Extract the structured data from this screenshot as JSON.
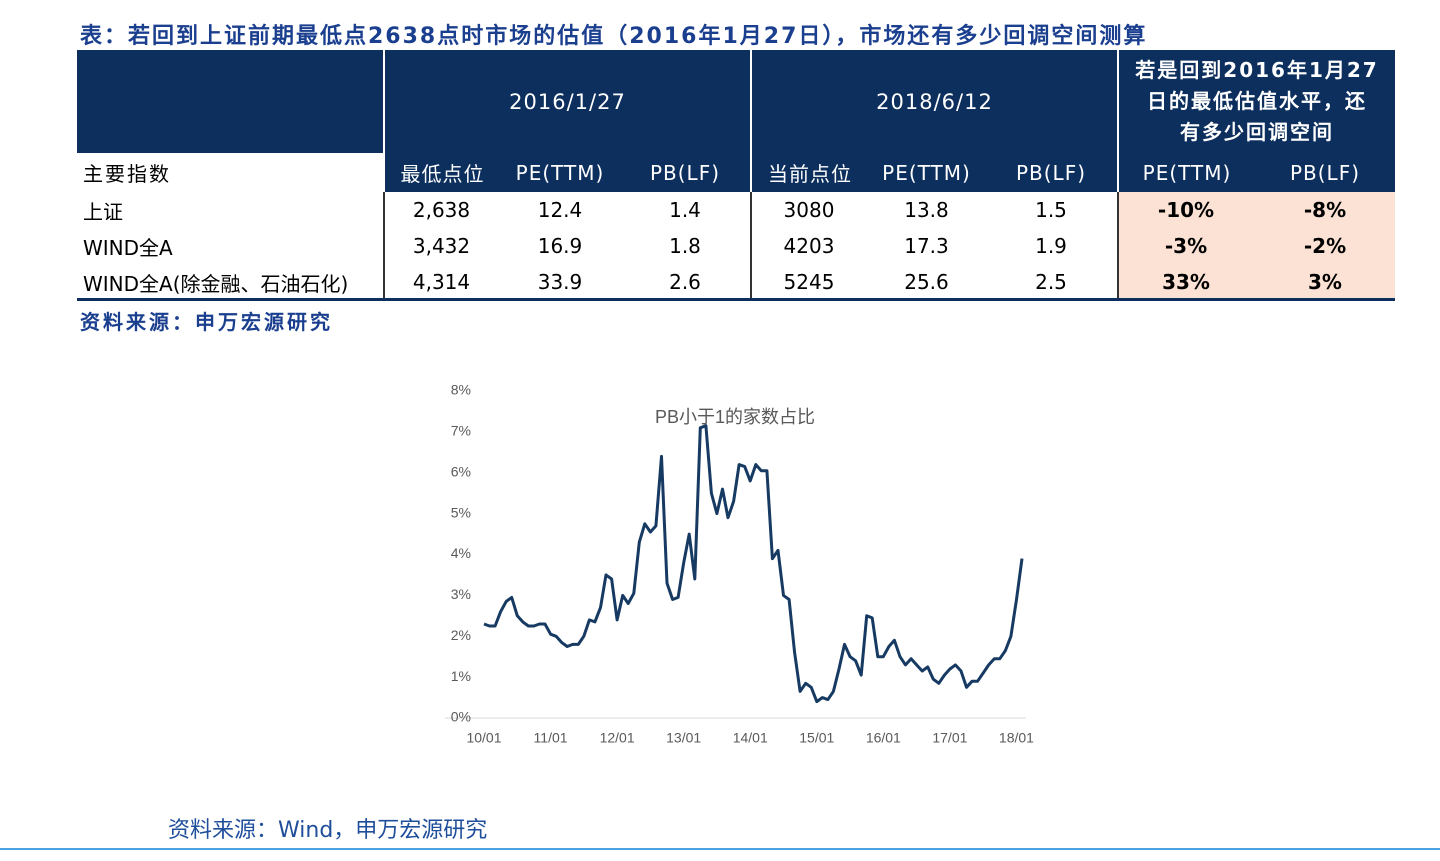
{
  "header": {
    "title": "表：若回到上证前期最低点2638点时市场的估值（2016年1月27日），市场还有多少回调空间测算"
  },
  "table": {
    "group_headers": [
      "2016/1/27",
      "2018/6/12"
    ],
    "group3_header_lines": [
      "若是回到2016年1月27",
      "日的最低估值水平，还",
      "有多少回调空间"
    ],
    "column_headers": [
      "主要指数",
      "最低点位",
      "PE(TTM)",
      "PB(LF)",
      "当前点位",
      "PE(TTM)",
      "PB(LF)",
      "PE(TTM)",
      "PB(LF)"
    ],
    "rows": [
      [
        "上证",
        "2,638",
        "12.4",
        "1.4",
        "3080",
        "13.8",
        "1.5",
        "-10%",
        "-8%"
      ],
      [
        "WIND全A",
        "3,432",
        "16.9",
        "1.8",
        "4203",
        "17.3",
        "1.9",
        "-3%",
        "-2%"
      ],
      [
        "WIND全A(除金融、石油石化)",
        "4,314",
        "33.9",
        "2.6",
        "5245",
        "25.6",
        "2.5",
        "33%",
        "3%"
      ]
    ],
    "source": "资料来源：申万宏源研究"
  },
  "chart_data": {
    "type": "line",
    "title": "PB小于1的家数占比",
    "color": "#173a63",
    "categories": [
      "10/01",
      null,
      null,
      null,
      null,
      null,
      null,
      null,
      null,
      null,
      null,
      null,
      "11/01",
      null,
      null,
      null,
      null,
      null,
      null,
      null,
      null,
      null,
      null,
      null,
      "12/01",
      null,
      null,
      null,
      null,
      null,
      null,
      null,
      null,
      null,
      null,
      null,
      "13/01",
      null,
      null,
      null,
      null,
      null,
      null,
      null,
      null,
      null,
      null,
      null,
      "14/01",
      null,
      null,
      null,
      null,
      null,
      null,
      null,
      null,
      null,
      null,
      null,
      "15/01",
      null,
      null,
      null,
      null,
      null,
      null,
      null,
      null,
      null,
      null,
      null,
      "16/01",
      null,
      null,
      null,
      null,
      null,
      null,
      null,
      null,
      null,
      null,
      null,
      "17/01",
      null,
      null,
      null,
      null,
      null,
      null,
      null,
      null,
      null,
      null,
      null,
      "18/01",
      null
    ],
    "values": [
      2.3,
      2.25,
      2.25,
      2.6,
      2.85,
      2.95,
      2.5,
      2.35,
      2.25,
      2.25,
      2.3,
      2.3,
      2.05,
      2.0,
      1.85,
      1.75,
      1.8,
      1.8,
      2.0,
      2.4,
      2.35,
      2.7,
      3.5,
      3.4,
      2.4,
      3.0,
      2.8,
      3.05,
      4.3,
      4.75,
      4.55,
      4.7,
      6.4,
      3.3,
      2.9,
      2.95,
      3.8,
      4.5,
      3.4,
      7.1,
      7.15,
      5.5,
      5.0,
      5.6,
      4.9,
      5.3,
      6.2,
      6.15,
      5.8,
      6.2,
      6.05,
      6.05,
      3.9,
      4.1,
      3.0,
      2.9,
      1.6,
      0.65,
      0.85,
      0.75,
      0.4,
      0.5,
      0.45,
      0.65,
      1.2,
      1.8,
      1.5,
      1.4,
      1.05,
      2.5,
      2.45,
      1.5,
      1.5,
      1.75,
      1.9,
      1.5,
      1.3,
      1.45,
      1.3,
      1.15,
      1.25,
      0.95,
      0.85,
      1.05,
      1.2,
      1.3,
      1.15,
      0.75,
      0.9,
      0.9,
      1.1,
      1.3,
      1.45,
      1.45,
      1.65,
      2.0,
      2.9,
      3.9
    ],
    "ylim": [
      0,
      8
    ],
    "yticks": [
      {
        "value": 0,
        "label": "0%"
      },
      {
        "value": 1,
        "label": "1%"
      },
      {
        "value": 2,
        "label": "2%"
      },
      {
        "value": 3,
        "label": "3%"
      },
      {
        "value": 4,
        "label": "4%"
      },
      {
        "value": 5,
        "label": "5%"
      },
      {
        "value": 6,
        "label": "6%"
      },
      {
        "value": 7,
        "label": "7%"
      },
      {
        "value": 8,
        "label": "8%"
      }
    ],
    "source": "资料来源：Wind，申万宏源研究"
  }
}
